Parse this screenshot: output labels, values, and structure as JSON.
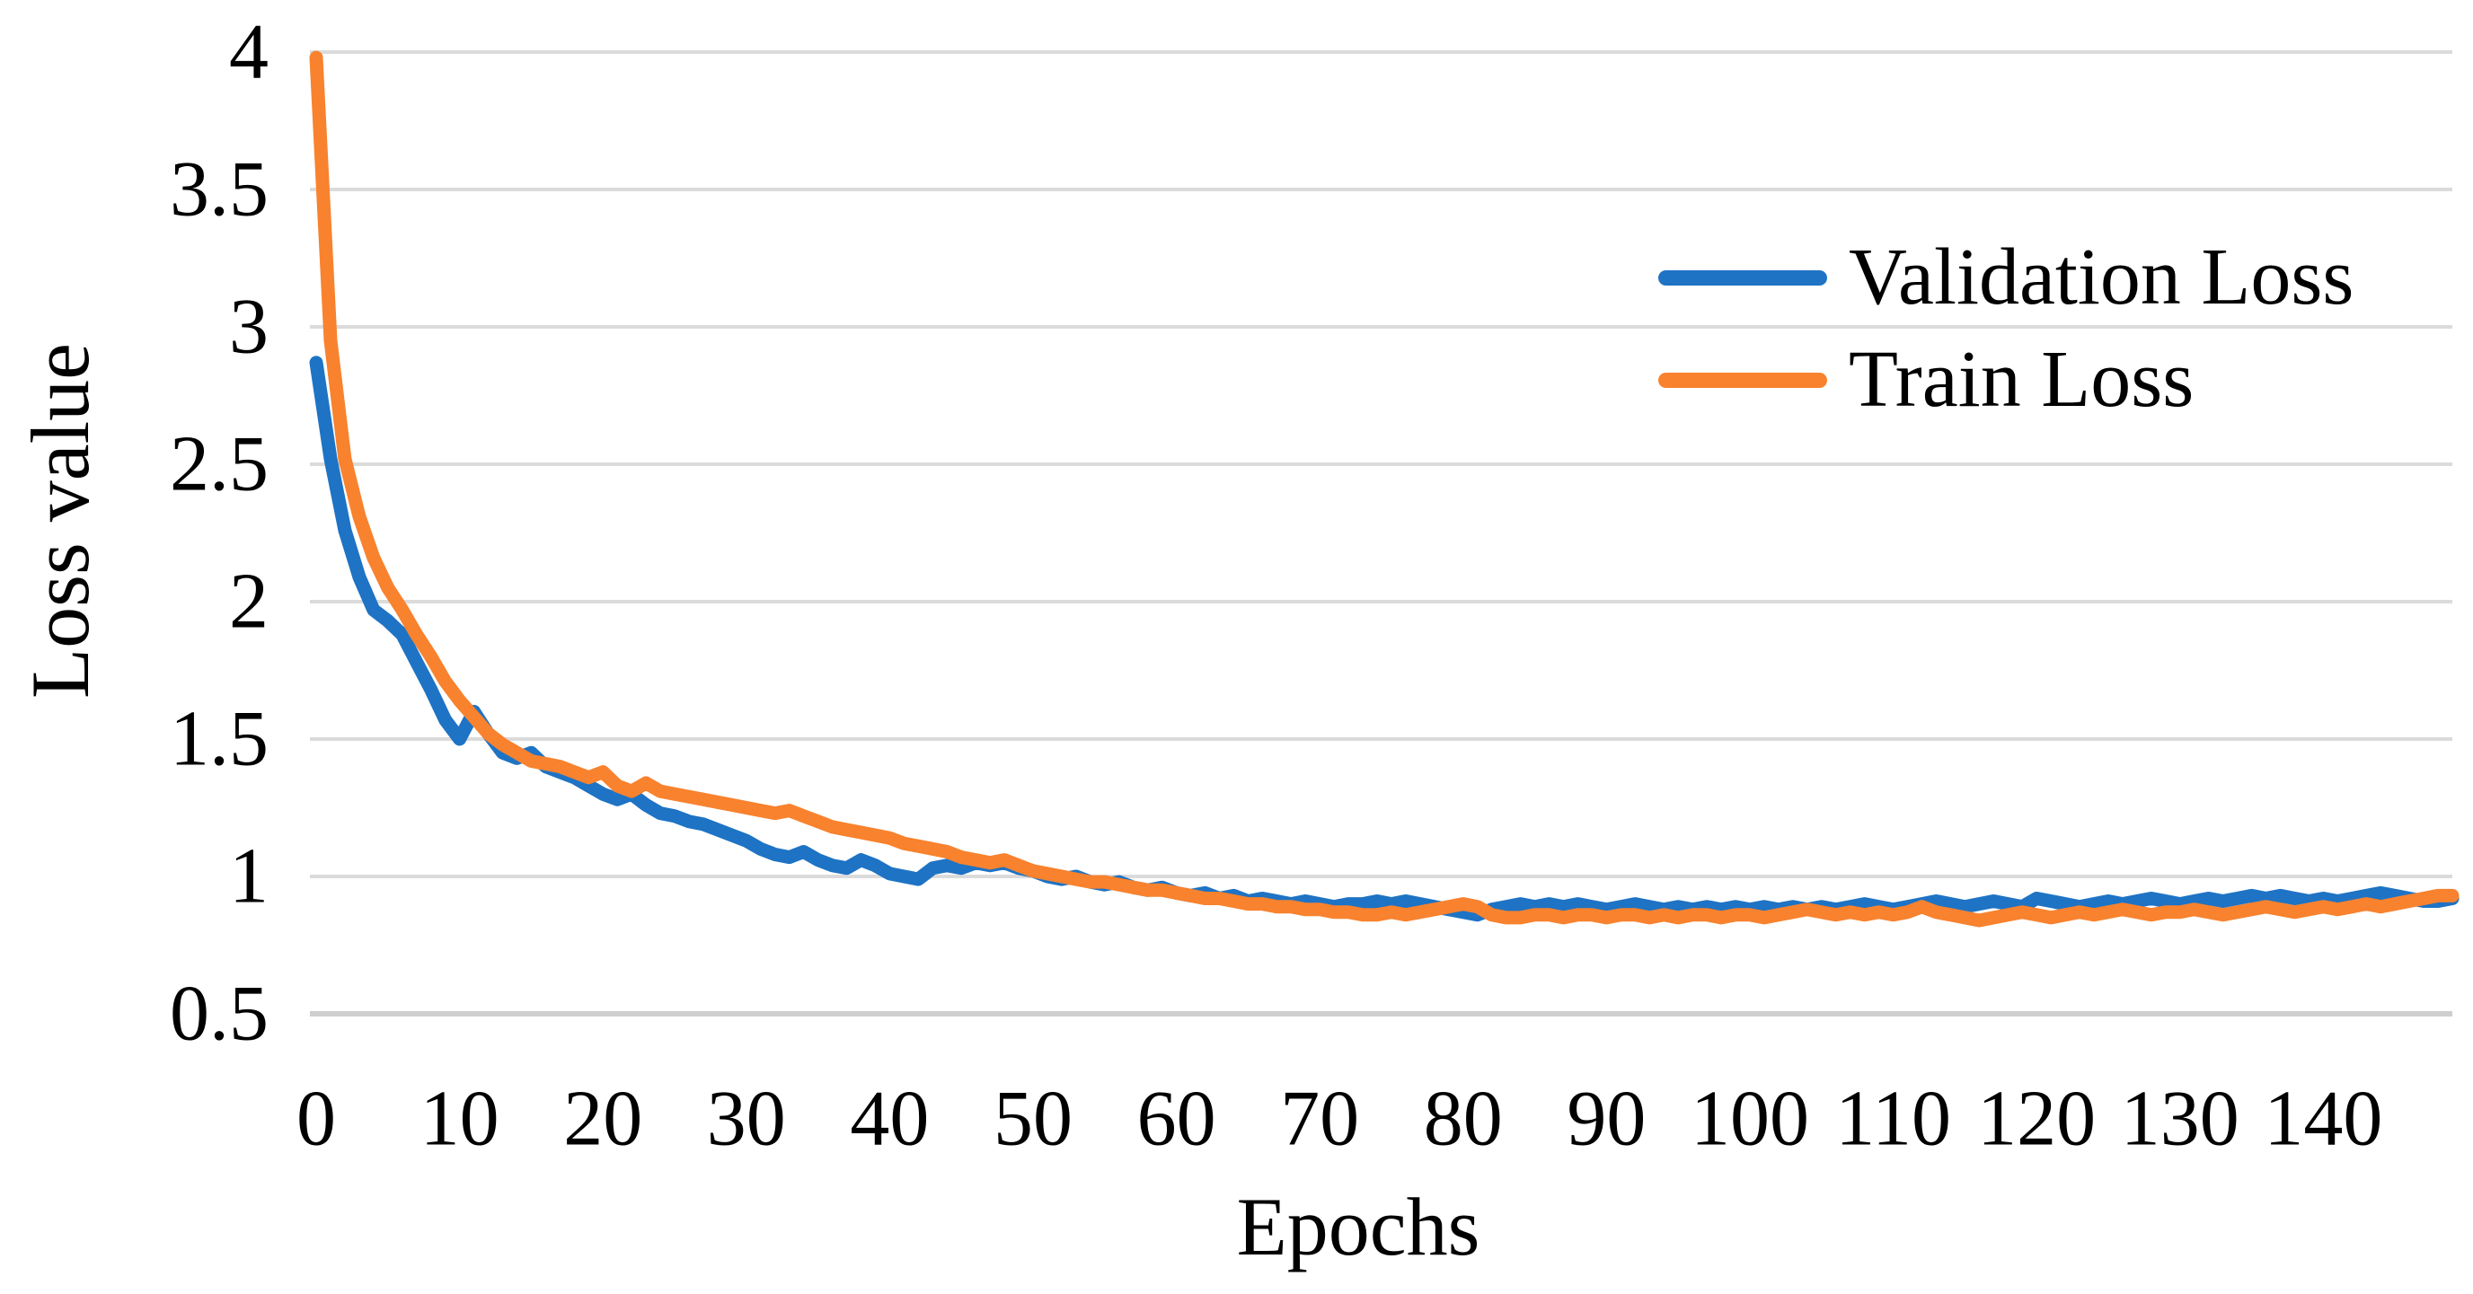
{
  "chart_data": {
    "type": "line",
    "title": "",
    "xlabel": "Epochs",
    "ylabel": "Loss value",
    "xlim": [
      0,
      149
    ],
    "ylim": [
      0.5,
      4
    ],
    "grid": "horizontal",
    "gridline_color": "#DBDBDB",
    "axis_line_color": "#CFCFCF",
    "background_color": "#FFFFFF",
    "legend_position": "upper right",
    "x_ticks": [
      0,
      10,
      20,
      30,
      40,
      50,
      60,
      70,
      80,
      90,
      100,
      110,
      120,
      130,
      140
    ],
    "y_ticks": [
      4,
      3.5,
      3,
      2.5,
      2,
      1.5,
      1,
      0.5
    ],
    "y_tick_labels": [
      "4",
      "3.5",
      "3",
      "2.5",
      "2",
      "1.5",
      "1",
      "0.5"
    ],
    "x_tick_labels": [
      "0",
      "10",
      "20",
      "30",
      "40",
      "50",
      "60",
      "70",
      "80",
      "90",
      "100",
      "110",
      "120",
      "130",
      "140"
    ],
    "epochs": {
      "start": 0,
      "step": 1,
      "count": 150
    },
    "series": [
      {
        "name": "Validation Loss",
        "color": "#1E73C4",
        "values": [
          2.87,
          2.52,
          2.26,
          2.09,
          1.97,
          1.93,
          1.88,
          1.78,
          1.68,
          1.57,
          1.5,
          1.6,
          1.52,
          1.45,
          1.43,
          1.45,
          1.4,
          1.38,
          1.36,
          1.33,
          1.3,
          1.28,
          1.3,
          1.26,
          1.23,
          1.22,
          1.2,
          1.19,
          1.17,
          1.15,
          1.13,
          1.1,
          1.08,
          1.07,
          1.09,
          1.06,
          1.04,
          1.03,
          1.06,
          1.04,
          1.01,
          1.0,
          0.99,
          1.03,
          1.04,
          1.03,
          1.05,
          1.04,
          1.05,
          1.03,
          1.02,
          1.0,
          0.99,
          1.0,
          0.98,
          0.97,
          0.98,
          0.96,
          0.95,
          0.96,
          0.94,
          0.93,
          0.94,
          0.92,
          0.93,
          0.91,
          0.92,
          0.91,
          0.9,
          0.91,
          0.9,
          0.89,
          0.9,
          0.9,
          0.91,
          0.9,
          0.91,
          0.9,
          0.89,
          0.88,
          0.87,
          0.86,
          0.88,
          0.89,
          0.9,
          0.89,
          0.9,
          0.89,
          0.9,
          0.89,
          0.88,
          0.89,
          0.9,
          0.89,
          0.88,
          0.89,
          0.88,
          0.89,
          0.88,
          0.89,
          0.88,
          0.89,
          0.88,
          0.89,
          0.88,
          0.89,
          0.88,
          0.89,
          0.9,
          0.89,
          0.88,
          0.89,
          0.9,
          0.91,
          0.9,
          0.89,
          0.9,
          0.91,
          0.9,
          0.89,
          0.92,
          0.91,
          0.9,
          0.89,
          0.9,
          0.91,
          0.9,
          0.91,
          0.92,
          0.91,
          0.9,
          0.91,
          0.92,
          0.91,
          0.92,
          0.93,
          0.92,
          0.93,
          0.92,
          0.91,
          0.92,
          0.91,
          0.92,
          0.93,
          0.94,
          0.93,
          0.92,
          0.91,
          0.91,
          0.92
        ]
      },
      {
        "name": "Train Loss",
        "color": "#F8822E",
        "values": [
          3.98,
          2.95,
          2.52,
          2.31,
          2.16,
          2.05,
          1.97,
          1.88,
          1.8,
          1.71,
          1.64,
          1.58,
          1.52,
          1.48,
          1.45,
          1.42,
          1.41,
          1.4,
          1.38,
          1.36,
          1.38,
          1.33,
          1.31,
          1.34,
          1.31,
          1.3,
          1.29,
          1.28,
          1.27,
          1.26,
          1.25,
          1.24,
          1.23,
          1.24,
          1.22,
          1.2,
          1.18,
          1.17,
          1.16,
          1.15,
          1.14,
          1.12,
          1.11,
          1.1,
          1.09,
          1.07,
          1.06,
          1.05,
          1.06,
          1.04,
          1.02,
          1.01,
          1.0,
          0.99,
          0.98,
          0.98,
          0.97,
          0.96,
          0.95,
          0.95,
          0.94,
          0.93,
          0.92,
          0.92,
          0.91,
          0.9,
          0.9,
          0.89,
          0.89,
          0.88,
          0.88,
          0.87,
          0.87,
          0.86,
          0.86,
          0.87,
          0.86,
          0.87,
          0.88,
          0.89,
          0.9,
          0.89,
          0.86,
          0.85,
          0.85,
          0.86,
          0.86,
          0.85,
          0.86,
          0.86,
          0.85,
          0.86,
          0.86,
          0.85,
          0.86,
          0.85,
          0.86,
          0.86,
          0.85,
          0.86,
          0.86,
          0.85,
          0.86,
          0.87,
          0.88,
          0.87,
          0.86,
          0.87,
          0.86,
          0.87,
          0.86,
          0.87,
          0.89,
          0.87,
          0.86,
          0.85,
          0.84,
          0.85,
          0.86,
          0.87,
          0.86,
          0.85,
          0.86,
          0.87,
          0.86,
          0.87,
          0.88,
          0.87,
          0.86,
          0.87,
          0.87,
          0.88,
          0.87,
          0.86,
          0.87,
          0.88,
          0.89,
          0.88,
          0.87,
          0.88,
          0.89,
          0.88,
          0.89,
          0.9,
          0.89,
          0.9,
          0.91,
          0.92,
          0.93,
          0.93
        ]
      }
    ]
  }
}
